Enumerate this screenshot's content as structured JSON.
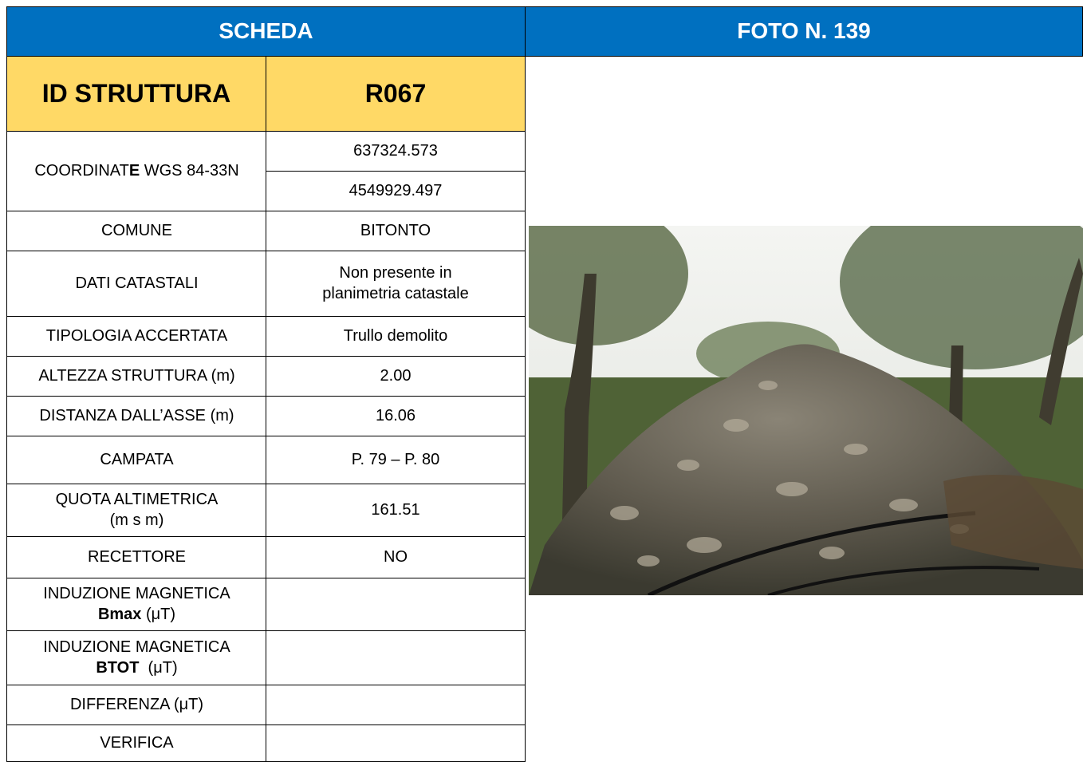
{
  "header": {
    "left": "SCHEDA",
    "right": "FOTO N. 139"
  },
  "table": {
    "id_label": "ID STRUTTURA",
    "id_value": "R067",
    "rows": [
      {
        "lines": [
          [
            "COORDINAT",
            {
              "text": "E",
              "bold": true
            },
            " WGS 84-33N"
          ]
        ],
        "values": [
          "637324.573",
          "4549929.497"
        ]
      },
      {
        "lines": [
          [
            "COMUNE"
          ]
        ],
        "values": [
          "BITONTO"
        ]
      },
      {
        "lines": [
          [
            "DATI CATASTALI"
          ]
        ],
        "values": [
          "Non presente in planimetria catastale"
        ]
      },
      {
        "lines": [
          [
            "TIPOLOGIA ACCERTATA"
          ]
        ],
        "values": [
          "Trullo demolito"
        ]
      },
      {
        "lines": [
          [
            "ALTEZZA STRUTTURA (m)"
          ]
        ],
        "values": [
          "2.00"
        ]
      },
      {
        "lines": [
          [
            "DISTANZA DALL’ASSE (m)"
          ]
        ],
        "values": [
          "16.06"
        ]
      },
      {
        "lines": [
          [
            "CAMPATA"
          ]
        ],
        "values": [
          "P. 79 – P. 80"
        ]
      },
      {
        "lines": [
          [
            "QUOTA ALTIMETRICA"
          ],
          [
            "(m s m)"
          ]
        ],
        "values": [
          "161.51"
        ]
      },
      {
        "lines": [
          [
            "RECETTORE"
          ]
        ],
        "values": [
          "NO"
        ]
      },
      {
        "lines": [
          [
            "INDUZIONE MAGNETICA"
          ],
          [
            {
              "text": "Bmax",
              "bold": true
            },
            " (μT)"
          ]
        ]
      },
      {
        "lines": [
          [
            "INDUZIONE MAGNETICA"
          ],
          [
            {
              "text": "BTOT",
              "bold": true
            },
            "  (μT)"
          ]
        ]
      },
      {
        "lines": [
          [
            "DIFFERENZA (μT)"
          ]
        ]
      },
      {
        "lines": [
          [
            "VERIFICA"
          ]
        ]
      }
    ]
  }
}
